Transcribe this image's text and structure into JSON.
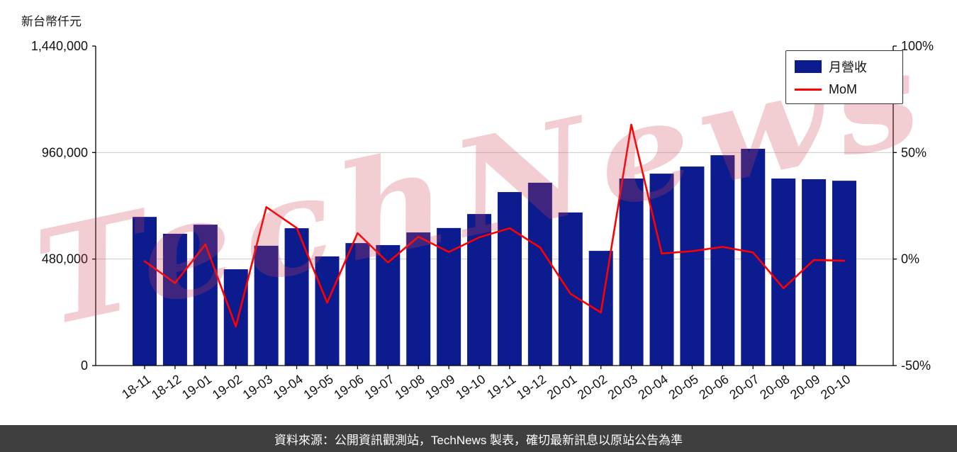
{
  "page": {
    "unit_label": "新台幣仟元",
    "watermark": "TechNews",
    "footer_text": "資料來源：公開資訊觀測站，TechNews 製表，確切最新訊息以原站公告為準"
  },
  "legend": {
    "bar_label": "月營收",
    "line_label": "MoM"
  },
  "colors": {
    "bar": "#0c1b8d",
    "line": "#ff0000",
    "grid": "#cccccc",
    "axis": "#000000",
    "tick_text": "#111111",
    "footer_bg": "#3f3f3f",
    "footer_fg": "#ffffff",
    "watermark": "#cf4456"
  },
  "chart_data": {
    "type": "bar",
    "title": "",
    "xlabel": "",
    "ylabel": "新台幣仟元",
    "categories": [
      "18-11",
      "18-12",
      "19-01",
      "19-02",
      "19-03",
      "19-04",
      "19-05",
      "19-06",
      "19-07",
      "19-08",
      "19-09",
      "19-10",
      "19-11",
      "19-12",
      "20-01",
      "20-02",
      "20-03",
      "20-04",
      "20-05",
      "20-06",
      "20-07",
      "20-08",
      "20-09",
      "20-10"
    ],
    "series": [
      {
        "name": "月營收",
        "type": "bar",
        "axis": "left",
        "color": "#0c1b8d",
        "values": [
          670000,
          594000,
          635000,
          434000,
          540000,
          619000,
          492000,
          552000,
          543000,
          600000,
          620000,
          683000,
          782000,
          824000,
          690000,
          517000,
          843000,
          865000,
          897000,
          948000,
          977000,
          843000,
          840000,
          833000
        ]
      },
      {
        "name": "MoM",
        "type": "line",
        "axis": "right",
        "color": "#ff0000",
        "values": [
          -1.0,
          -11.3,
          6.9,
          -31.7,
          24.4,
          14.6,
          -20.5,
          12.2,
          -1.6,
          10.5,
          3.3,
          10.2,
          14.5,
          5.4,
          -16.3,
          -25.1,
          63.1,
          2.6,
          3.7,
          5.7,
          3.1,
          -13.7,
          -0.4,
          -0.8
        ]
      }
    ],
    "left_axis": {
      "range": [
        0,
        1440000
      ],
      "ticks": [
        0,
        480000,
        960000,
        1440000
      ],
      "tick_labels": [
        "0",
        "480,000",
        "960,000",
        "1,440,000"
      ]
    },
    "right_axis": {
      "range": [
        -50,
        100
      ],
      "ticks": [
        -50,
        0,
        50,
        100
      ],
      "tick_labels": [
        "-50%",
        "0%",
        "50%",
        "100%"
      ]
    },
    "grid": true,
    "legend_position": "top-right"
  }
}
